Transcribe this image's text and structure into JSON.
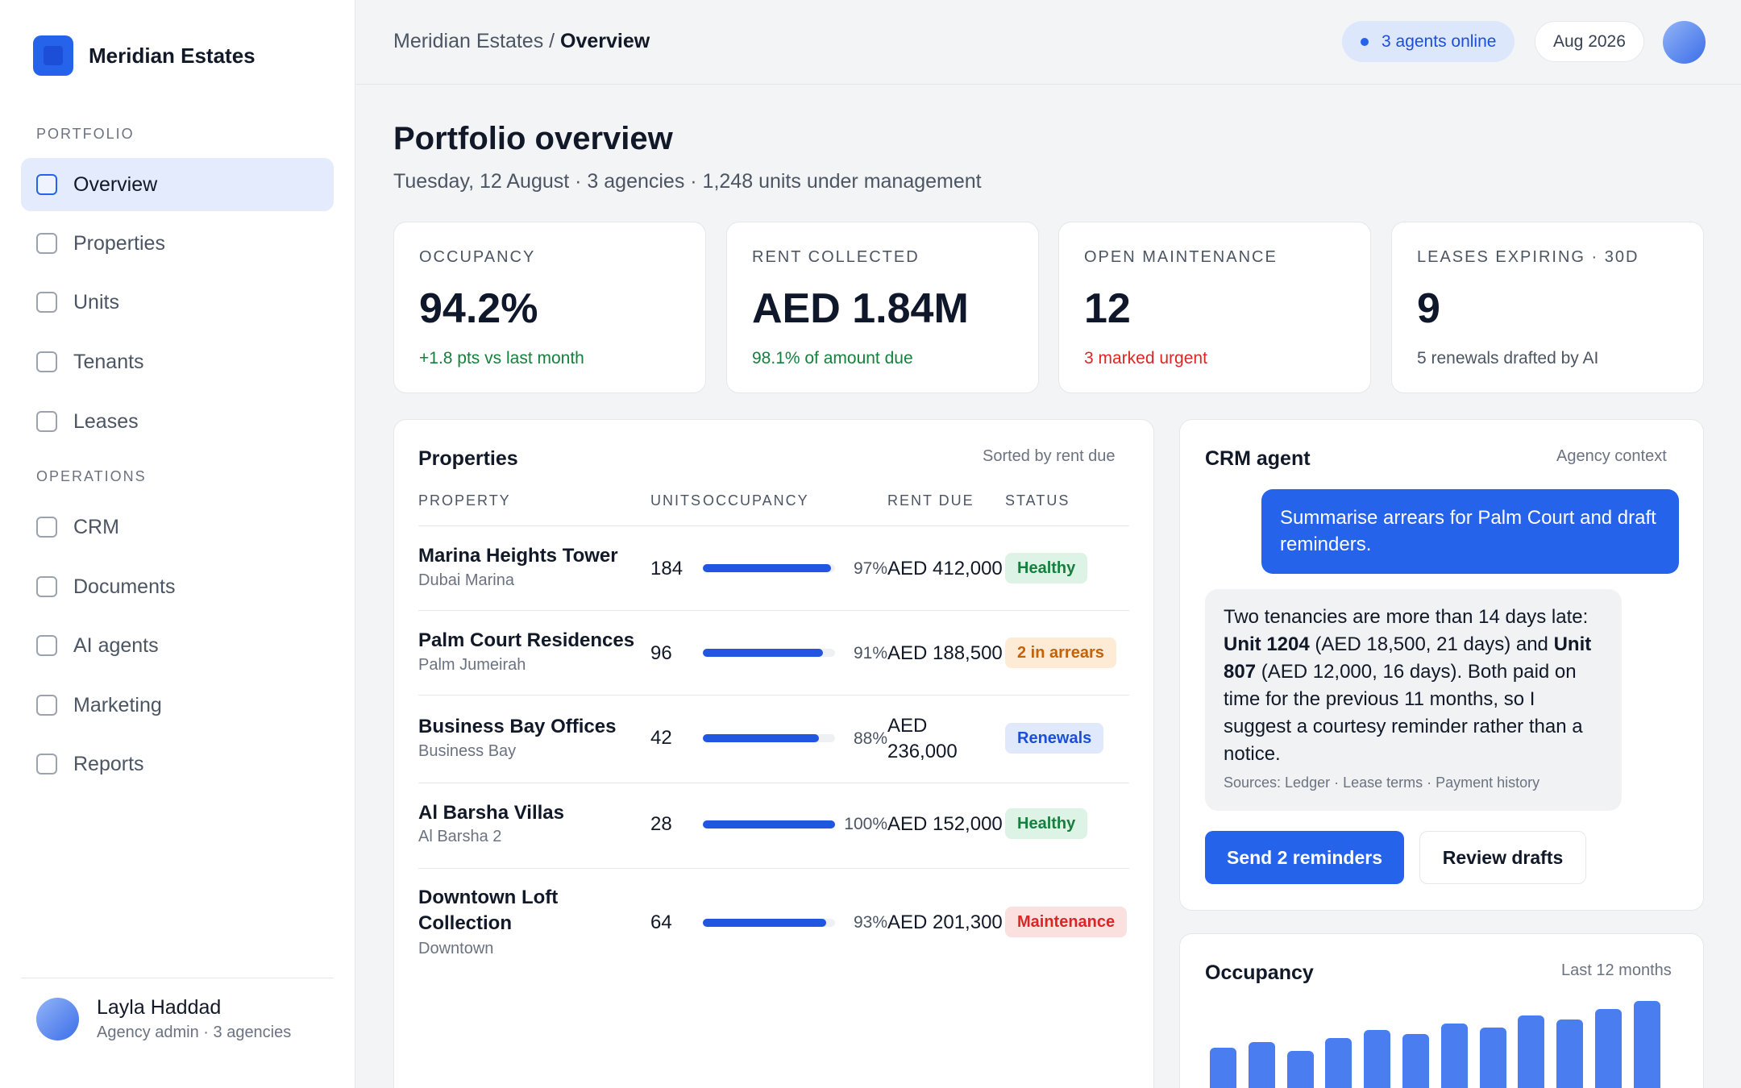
{
  "brand": {
    "name": "Meridian Estates"
  },
  "sidebar": {
    "sections": [
      {
        "label": "PORTFOLIO"
      },
      {
        "label": "OPERATIONS"
      }
    ],
    "items": [
      {
        "label": "Overview",
        "active": true
      },
      {
        "label": "Properties"
      },
      {
        "label": "Units"
      },
      {
        "label": "Tenants"
      },
      {
        "label": "Leases"
      },
      {
        "label": "CRM"
      },
      {
        "label": "Documents"
      },
      {
        "label": "AI agents"
      },
      {
        "label": "Marketing"
      },
      {
        "label": "Reports"
      }
    ],
    "user": {
      "name": "Layla Haddad",
      "role": "Agency admin · 3 agencies"
    }
  },
  "header": {
    "breadcrumb_root": "Meridian Estates",
    "breadcrumb_sep": " / ",
    "breadcrumb_current": "Overview",
    "agents_online": "3 agents online",
    "period": "Aug 2026"
  },
  "page": {
    "title": "Portfolio overview",
    "subtitle": "Tuesday, 12 August · 3 agencies · 1,248 units under management"
  },
  "stats": [
    {
      "label": "OCCUPANCY",
      "value": "94.2%",
      "note": "+1.8 pts vs last month",
      "tone": "green"
    },
    {
      "label": "RENT COLLECTED",
      "value": "AED 1.84M",
      "note": "98.1% of amount due",
      "tone": "green"
    },
    {
      "label": "OPEN MAINTENANCE",
      "value": "12",
      "note": "3 marked urgent",
      "tone": "red"
    },
    {
      "label": "LEASES EXPIRING · 30D",
      "value": "9",
      "note": "5 renewals drafted by AI",
      "tone": "gray"
    }
  ],
  "properties": {
    "title": "Properties",
    "sort_note": "Sorted by rent due",
    "columns": [
      "PROPERTY",
      "UNITS",
      "OCCUPANCY",
      "RENT DUE",
      "STATUS"
    ],
    "rows": [
      {
        "name": "Marina Heights Tower",
        "location": "Dubai Marina",
        "units": "184",
        "occupancy": 97,
        "occupancy_label": "97%",
        "rent_due": "AED 412,000",
        "status": "Healthy",
        "status_type": "healthy"
      },
      {
        "name": "Palm Court Residences",
        "location": "Palm Jumeirah",
        "units": "96",
        "occupancy": 91,
        "occupancy_label": "91%",
        "rent_due": "AED 188,500",
        "status": "2 in arrears",
        "status_type": "arrears"
      },
      {
        "name": "Business Bay Offices",
        "location": "Business Bay",
        "units": "42",
        "occupancy": 88,
        "occupancy_label": "88%",
        "rent_due": "AED 236,000",
        "status": "Renewals",
        "status_type": "renew"
      },
      {
        "name": "Al Barsha Villas",
        "location": "Al Barsha 2",
        "units": "28",
        "occupancy": 100,
        "occupancy_label": "100%",
        "rent_due": "AED 152,000",
        "status": "Healthy",
        "status_type": "healthy"
      },
      {
        "name": "Downtown Loft Collection",
        "location": "Downtown",
        "units": "64",
        "occupancy": 93,
        "occupancy_label": "93%",
        "rent_due": "AED 201,300",
        "status": "Maintenance",
        "status_type": "maint"
      }
    ]
  },
  "crm": {
    "title": "CRM agent",
    "context": "Agency context",
    "user_message": "Summarise arrears for Palm Court and draft reminders.",
    "agent_message": {
      "t1": "Two tenancies are more than 14 days late: ",
      "b1": "Unit 1204",
      "t2": " (AED 18,500, 21 days) and ",
      "b2": "Unit 807",
      "t3": " (AED 12,000, 16 days). Both paid on time for the previous 11 months, so I suggest a courtesy reminder rather than a notice."
    },
    "sources": "Sources: Ledger · Lease terms · Payment history",
    "primary_action": "Send 2 reminders",
    "secondary_action": "Review drafts"
  },
  "occupancy_chart": {
    "title": "Occupancy",
    "range": "Last 12 months"
  },
  "chart_data": {
    "type": "bar",
    "title": "Occupancy",
    "categories": [
      "1",
      "2",
      "3",
      "4",
      "5",
      "6",
      "7",
      "8",
      "9",
      "10",
      "11",
      "12"
    ],
    "values": [
      42,
      48,
      38,
      52,
      60,
      56,
      67,
      63,
      75,
      71,
      82,
      90
    ],
    "note": "bars partially visible; relative heights shown",
    "color": "#4a7ef0"
  },
  "colors": {
    "accent": "#2563eb",
    "positive": "#15803d",
    "negative": "#dc2626",
    "warning": "#c2620b"
  }
}
